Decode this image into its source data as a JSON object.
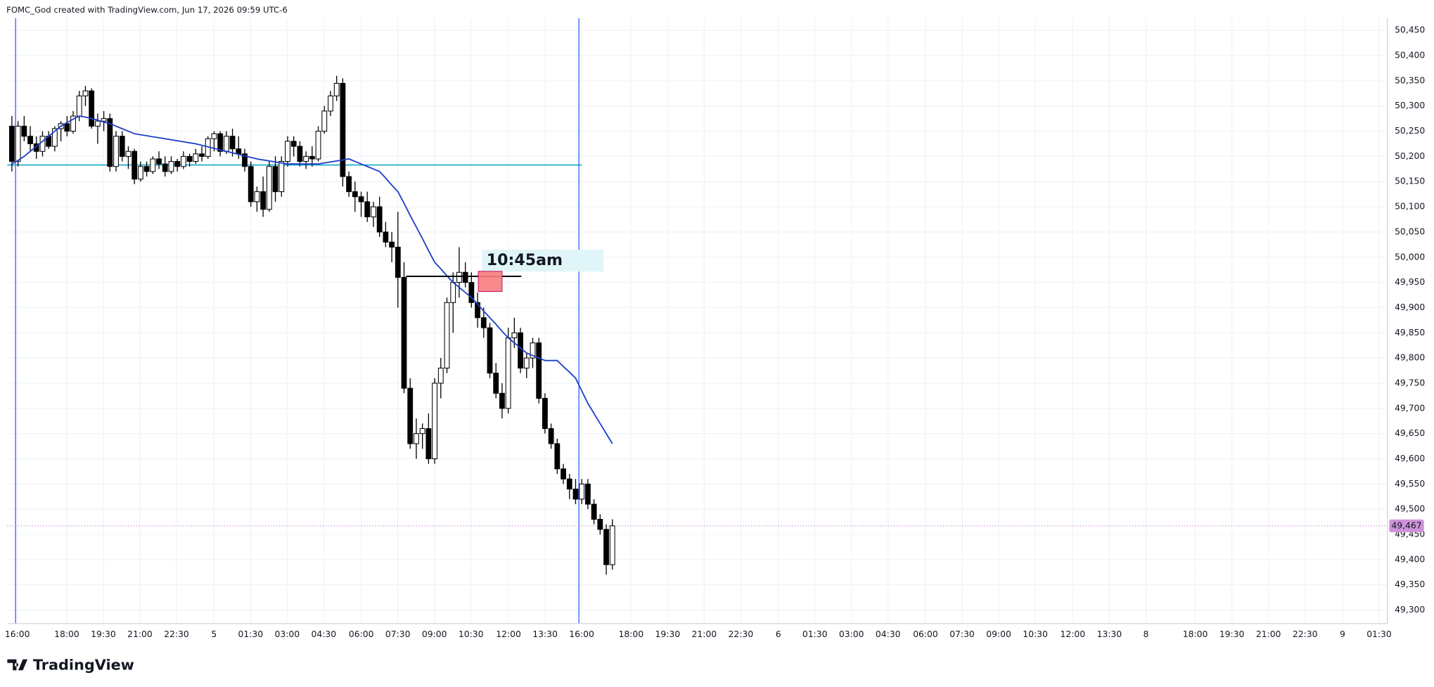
{
  "header": {
    "title": "FOMC_God created with TradingView.com, Jun 17, 2026 09:59 UTC-6"
  },
  "footer": {
    "brand": "TradingView"
  },
  "chart_data": {
    "type": "candlestick",
    "ylim": [
      49273,
      50474
    ],
    "yticks": [
      {
        "value": 49300,
        "label": "49,300"
      },
      {
        "value": 49350,
        "label": "49,350"
      },
      {
        "value": 49400,
        "label": "49,400"
      },
      {
        "value": 49450,
        "label": "49,450"
      },
      {
        "value": 49500,
        "label": "49,500"
      },
      {
        "value": 49550,
        "label": "49,550"
      },
      {
        "value": 49600,
        "label": "49,600"
      },
      {
        "value": 49650,
        "label": "49,650"
      },
      {
        "value": 49700,
        "label": "49,700"
      },
      {
        "value": 49750,
        "label": "49,750"
      },
      {
        "value": 49800,
        "label": "49,800"
      },
      {
        "value": 49850,
        "label": "49,850"
      },
      {
        "value": 49900,
        "label": "49,900"
      },
      {
        "value": 49950,
        "label": "49,950"
      },
      {
        "value": 50000,
        "label": "50,000"
      },
      {
        "value": 50050,
        "label": "50,050"
      },
      {
        "value": 50100,
        "label": "50,100"
      },
      {
        "value": 50150,
        "label": "50,150"
      },
      {
        "value": 50200,
        "label": "50,200"
      },
      {
        "value": 50250,
        "label": "50,250"
      },
      {
        "value": 50300,
        "label": "50,300"
      },
      {
        "value": 50350,
        "label": "50,350"
      },
      {
        "value": 50400,
        "label": "50,400"
      },
      {
        "value": 50450,
        "label": "50,450"
      }
    ],
    "xtick_labels": [
      "16:00",
      "18:00",
      "19:30",
      "21:00",
      "22:30",
      "5",
      "01:30",
      "03:00",
      "04:30",
      "06:00",
      "07:30",
      "09:00",
      "10:30",
      "12:00",
      "13:30",
      "16:00",
      "18:00",
      "19:30",
      "21:00",
      "22:30",
      "6",
      "01:30",
      "03:00",
      "04:30",
      "06:00",
      "07:30",
      "09:00",
      "10:30",
      "12:00",
      "13:30",
      "8",
      "18:00",
      "19:30",
      "21:00",
      "22:30",
      "9",
      "01:30"
    ],
    "grid": true,
    "up_color": "#ffffff",
    "down_color": "#000000",
    "open": [
      50260,
      50190,
      50260,
      50240,
      50225,
      50210,
      50240,
      50220,
      50255,
      50265,
      50250,
      50280,
      50320,
      50330,
      50260,
      50270,
      50275,
      50180,
      50240,
      50200,
      50210,
      50155,
      50180,
      50170,
      50195,
      50185,
      50170,
      50190,
      50180,
      50200,
      50190,
      50205,
      50200,
      50235,
      50245,
      50210,
      50240,
      50215,
      50205,
      50180,
      50110,
      50130,
      50095,
      50180,
      50130,
      50190,
      50230,
      50220,
      50190,
      50200,
      50195,
      50250,
      50290,
      50320,
      50345,
      50160,
      50130,
      50120,
      50110,
      50080,
      50100,
      50050,
      50030,
      50020,
      49960,
      49740,
      49630,
      49650,
      49660,
      49600,
      49750,
      49780,
      49910,
      49950,
      49970,
      49950,
      49910,
      49880,
      49860,
      49770,
      49730,
      49700,
      49840,
      49850,
      49780,
      49800,
      49830,
      49720,
      49660,
      49630,
      49580,
      49560,
      49540,
      49520,
      49550,
      49510,
      49480,
      49460,
      49390
    ],
    "high": [
      50280,
      50270,
      50280,
      50260,
      50240,
      50250,
      50250,
      50260,
      50270,
      50280,
      50290,
      50330,
      50340,
      50335,
      50285,
      50290,
      50285,
      50250,
      50250,
      50220,
      50215,
      50190,
      50190,
      50200,
      50210,
      50200,
      50200,
      50195,
      50210,
      50205,
      50215,
      50220,
      50240,
      50250,
      50250,
      50250,
      50255,
      50240,
      50215,
      50190,
      50140,
      50160,
      50190,
      50200,
      50200,
      50240,
      50240,
      50230,
      50210,
      50220,
      50260,
      50300,
      50330,
      50360,
      50355,
      50170,
      50150,
      50130,
      50130,
      50110,
      50120,
      50070,
      50050,
      50090,
      49990,
      49760,
      49680,
      49670,
      49690,
      49760,
      49800,
      49920,
      49970,
      50020,
      49990,
      49970,
      49930,
      49900,
      49870,
      49790,
      49750,
      49860,
      49880,
      49860,
      49810,
      49840,
      49840,
      49730,
      49670,
      49640,
      49590,
      49570,
      49560,
      49560,
      49560,
      49520,
      49490,
      49470,
      49480
    ],
    "low": [
      50170,
      50180,
      50230,
      50210,
      50195,
      50200,
      50215,
      50210,
      50230,
      50240,
      50245,
      50270,
      50300,
      50255,
      50225,
      50250,
      50170,
      50170,
      50190,
      50175,
      50145,
      50150,
      50160,
      50165,
      50175,
      50160,
      50165,
      50170,
      50175,
      50180,
      50185,
      50190,
      50195,
      50210,
      50200,
      50205,
      50200,
      50195,
      50170,
      50100,
      50090,
      50080,
      50090,
      50110,
      50120,
      50180,
      50200,
      50180,
      50175,
      50180,
      50190,
      50245,
      50280,
      50310,
      50140,
      50120,
      50090,
      50080,
      50070,
      50060,
      50040,
      50020,
      49990,
      49900,
      49730,
      49620,
      49600,
      49620,
      49590,
      49590,
      49720,
      49770,
      49850,
      49920,
      49940,
      49900,
      49860,
      49840,
      49760,
      49720,
      49680,
      49690,
      49820,
      49770,
      49760,
      49780,
      49710,
      49650,
      49620,
      49570,
      49550,
      49520,
      49510,
      49510,
      49500,
      49470,
      49450,
      49370,
      49380
    ],
    "close": [
      50190,
      50260,
      50240,
      50225,
      50210,
      50240,
      50220,
      50255,
      50265,
      50250,
      50280,
      50320,
      50330,
      50260,
      50270,
      50275,
      50180,
      50240,
      50200,
      50210,
      50155,
      50180,
      50170,
      50195,
      50185,
      50170,
      50190,
      50180,
      50200,
      50190,
      50205,
      50200,
      50235,
      50245,
      50210,
      50240,
      50215,
      50205,
      50180,
      50110,
      50130,
      50095,
      50180,
      50130,
      50190,
      50230,
      50220,
      50190,
      50200,
      50195,
      50250,
      50290,
      50320,
      50345,
      50160,
      50130,
      50120,
      50110,
      50080,
      50100,
      50050,
      50030,
      50020,
      49960,
      49740,
      49630,
      49650,
      49660,
      49600,
      49750,
      49780,
      49910,
      49950,
      49970,
      49950,
      49910,
      49880,
      49860,
      49770,
      49730,
      49700,
      49840,
      49850,
      49780,
      49800,
      49830,
      49720,
      49660,
      49630,
      49580,
      49560,
      49540,
      49520,
      49550,
      49510,
      49480,
      49460,
      49390,
      49467
    ],
    "moving_average": {
      "color": "#1e3fc8",
      "values": [
        50185,
        50192,
        50200,
        50210,
        50220,
        50230,
        50240,
        50250,
        50260,
        50267,
        50274,
        50280,
        50278,
        50275,
        50272,
        50268,
        50265,
        50260,
        50255,
        50250,
        50245,
        50243,
        50241,
        50239,
        50237,
        50235,
        50233,
        50231,
        50229,
        50227,
        50225,
        50222,
        50219,
        50216,
        50213,
        50210,
        50207,
        50204,
        50201,
        50198,
        50195,
        50193,
        50191,
        50189,
        50187,
        50185,
        50185,
        50185,
        50185,
        50185,
        50185,
        50187,
        50189,
        50191,
        50193,
        50195,
        50190,
        50185,
        50180,
        50175,
        50170,
        50157,
        50143,
        50130,
        50107,
        50083,
        50060,
        50037,
        50013,
        49990,
        49977,
        49963,
        49950,
        49940,
        49930,
        49920,
        49907,
        49893,
        49880,
        49867,
        49853,
        49840,
        49830,
        49820,
        49810,
        49805,
        49800,
        49795,
        49795,
        49795,
        49783,
        49772,
        49760,
        49735,
        49710,
        49690,
        49670,
        49650,
        49630
      ]
    },
    "horizontal_level": {
      "value": 50183,
      "color": "#00a3c4"
    },
    "entry_line": {
      "value": 49962,
      "color": "#000000"
    },
    "zone": {
      "values": [
        49932,
        49972
      ],
      "color": "#f77c80"
    },
    "annotation": {
      "text": "10:45am",
      "color": "#e0f5f7"
    },
    "last_price": {
      "value": 49467,
      "label": "49,467",
      "color": "#ce93d8"
    }
  }
}
